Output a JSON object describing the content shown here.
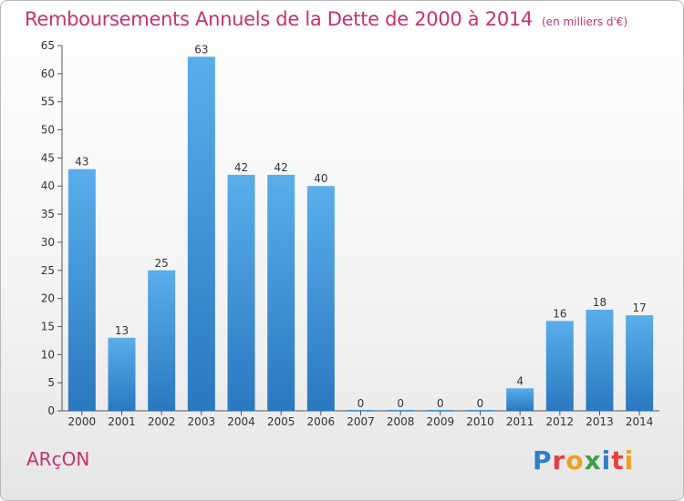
{
  "header": {
    "title": "Remboursements Annuels de la Dette de 2000 à 2014",
    "subtitle": "(en milliers d'€)"
  },
  "footer": {
    "commune": "ARçON",
    "logo_letters": [
      "P",
      "r",
      "o",
      "x",
      "i",
      "t",
      "i"
    ],
    "logo_colors": [
      "#2f7fc8",
      "#e8403c",
      "#f0a020",
      "#3aa046",
      "#2f7fc8",
      "#e8403c",
      "#f0a020"
    ]
  },
  "chart_data": {
    "type": "bar",
    "title": "Remboursements Annuels de la Dette de 2000 à 2014",
    "subtitle": "(en milliers d'€)",
    "categories": [
      "2000",
      "2001",
      "2002",
      "2003",
      "2004",
      "2005",
      "2006",
      "2007",
      "2008",
      "2009",
      "2010",
      "2011",
      "2012",
      "2013",
      "2014"
    ],
    "values": [
      43,
      13,
      25,
      63,
      42,
      42,
      40,
      0,
      0,
      0,
      0,
      4,
      16,
      18,
      17
    ],
    "data_labels": [
      "43",
      "13",
      "25",
      "63",
      "42",
      "42",
      "40",
      "0",
      "0",
      "0",
      "0",
      "4",
      "16",
      "18",
      "17"
    ],
    "ylim": [
      0,
      65
    ],
    "yticks": [
      "0",
      "5",
      "10",
      "15",
      "20",
      "25",
      "30",
      "35",
      "40",
      "45",
      "50",
      "55",
      "60",
      "65"
    ],
    "ytick_values": [
      0,
      5,
      10,
      15,
      20,
      25,
      30,
      35,
      40,
      45,
      50,
      55,
      60,
      65
    ],
    "grid": false,
    "bar_color": "#3a90d8"
  }
}
